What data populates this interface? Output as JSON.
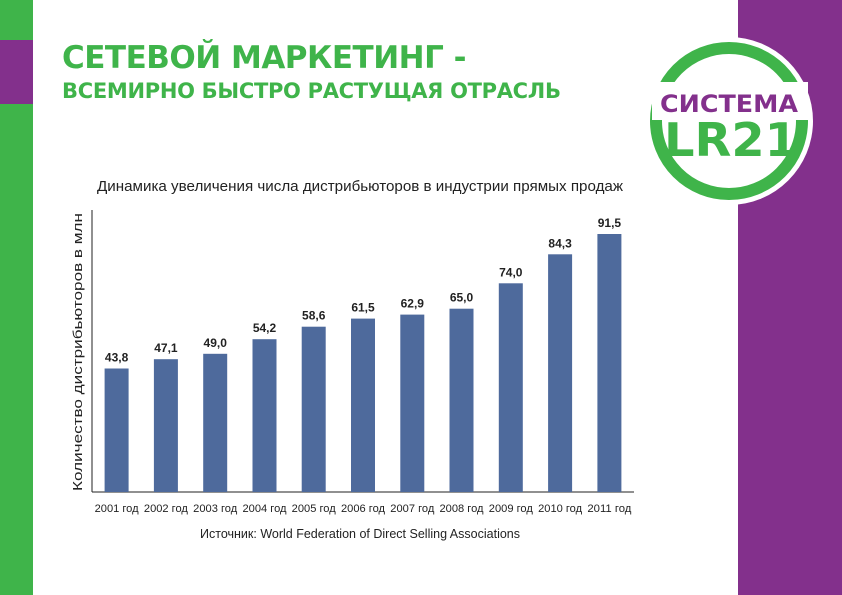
{
  "header": {
    "title_line1": "СЕТЕВОЙ МАРКЕТИНГ -",
    "title_line2": "ВСЕМИРНО БЫСТРО РАСТУЩАЯ ОТРАСЛЬ"
  },
  "logo": {
    "word": "СИСТЕМА",
    "mark": "LR21"
  },
  "colors": {
    "green": "#3fb44a",
    "purple": "#83308c",
    "bar": "#4e6a9c",
    "text": "#222222"
  },
  "chart_data": {
    "type": "bar",
    "title": "Динамика увеличения числа дистрибьюторов в индустрии прямых продаж",
    "ylabel": "Количество дистрибьюторов в млн",
    "xlabel": "",
    "categories": [
      "2001 год",
      "2002 год",
      "2003 год",
      "2004 год",
      "2005 год",
      "2006 год",
      "2007 год",
      "2008 год",
      "2009 год",
      "2010 год",
      "2011 год"
    ],
    "values": [
      43.8,
      47.1,
      49.0,
      54.2,
      58.6,
      61.5,
      62.9,
      65.0,
      74.0,
      84.3,
      91.5
    ],
    "value_labels": [
      "43,8",
      "47,1",
      "49,0",
      "54,2",
      "58,6",
      "61,5",
      "62,9",
      "65,0",
      "74,0",
      "84,3",
      "91,5"
    ],
    "source": "Источник: World Federation of Direct Selling Associations",
    "grid": false,
    "legend": "none"
  }
}
